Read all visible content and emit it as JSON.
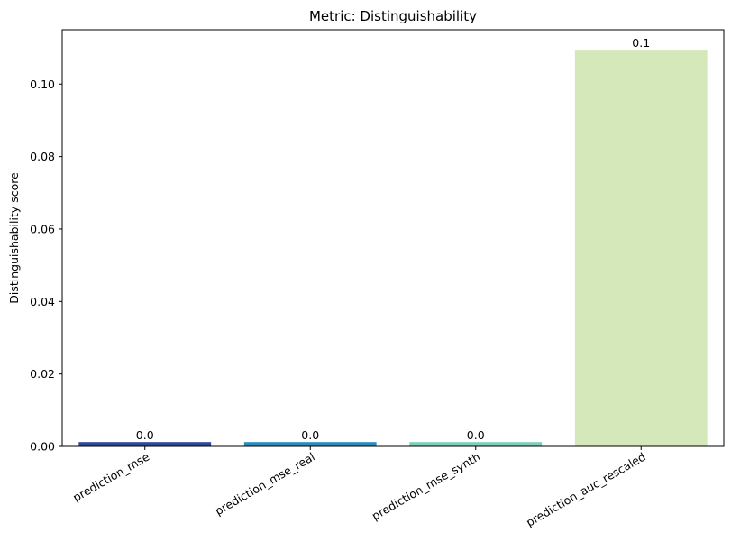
{
  "chart_data": {
    "type": "bar",
    "title": "Metric: Distinguishability",
    "xlabel": "",
    "ylabel": "Distinguishability score",
    "categories": [
      "prediction_mse",
      "prediction_mse_real",
      "prediction_mse_synth",
      "prediction_auc_rescaled"
    ],
    "values": [
      0.0012,
      0.0012,
      0.0012,
      0.1095
    ],
    "data_labels": [
      "0.0",
      "0.0",
      "0.0",
      "0.1"
    ],
    "bar_colors": [
      "#2d4a9a",
      "#2b8cbe",
      "#7fcdbb",
      "#d5e8b9"
    ],
    "ylim": [
      0,
      0.115
    ],
    "yticks": [
      0.0,
      0.02,
      0.04,
      0.06,
      0.08,
      0.1
    ],
    "ytick_labels": [
      "0.00",
      "0.02",
      "0.04",
      "0.06",
      "0.08",
      "0.10"
    ],
    "grid": false,
    "legend": "none"
  }
}
